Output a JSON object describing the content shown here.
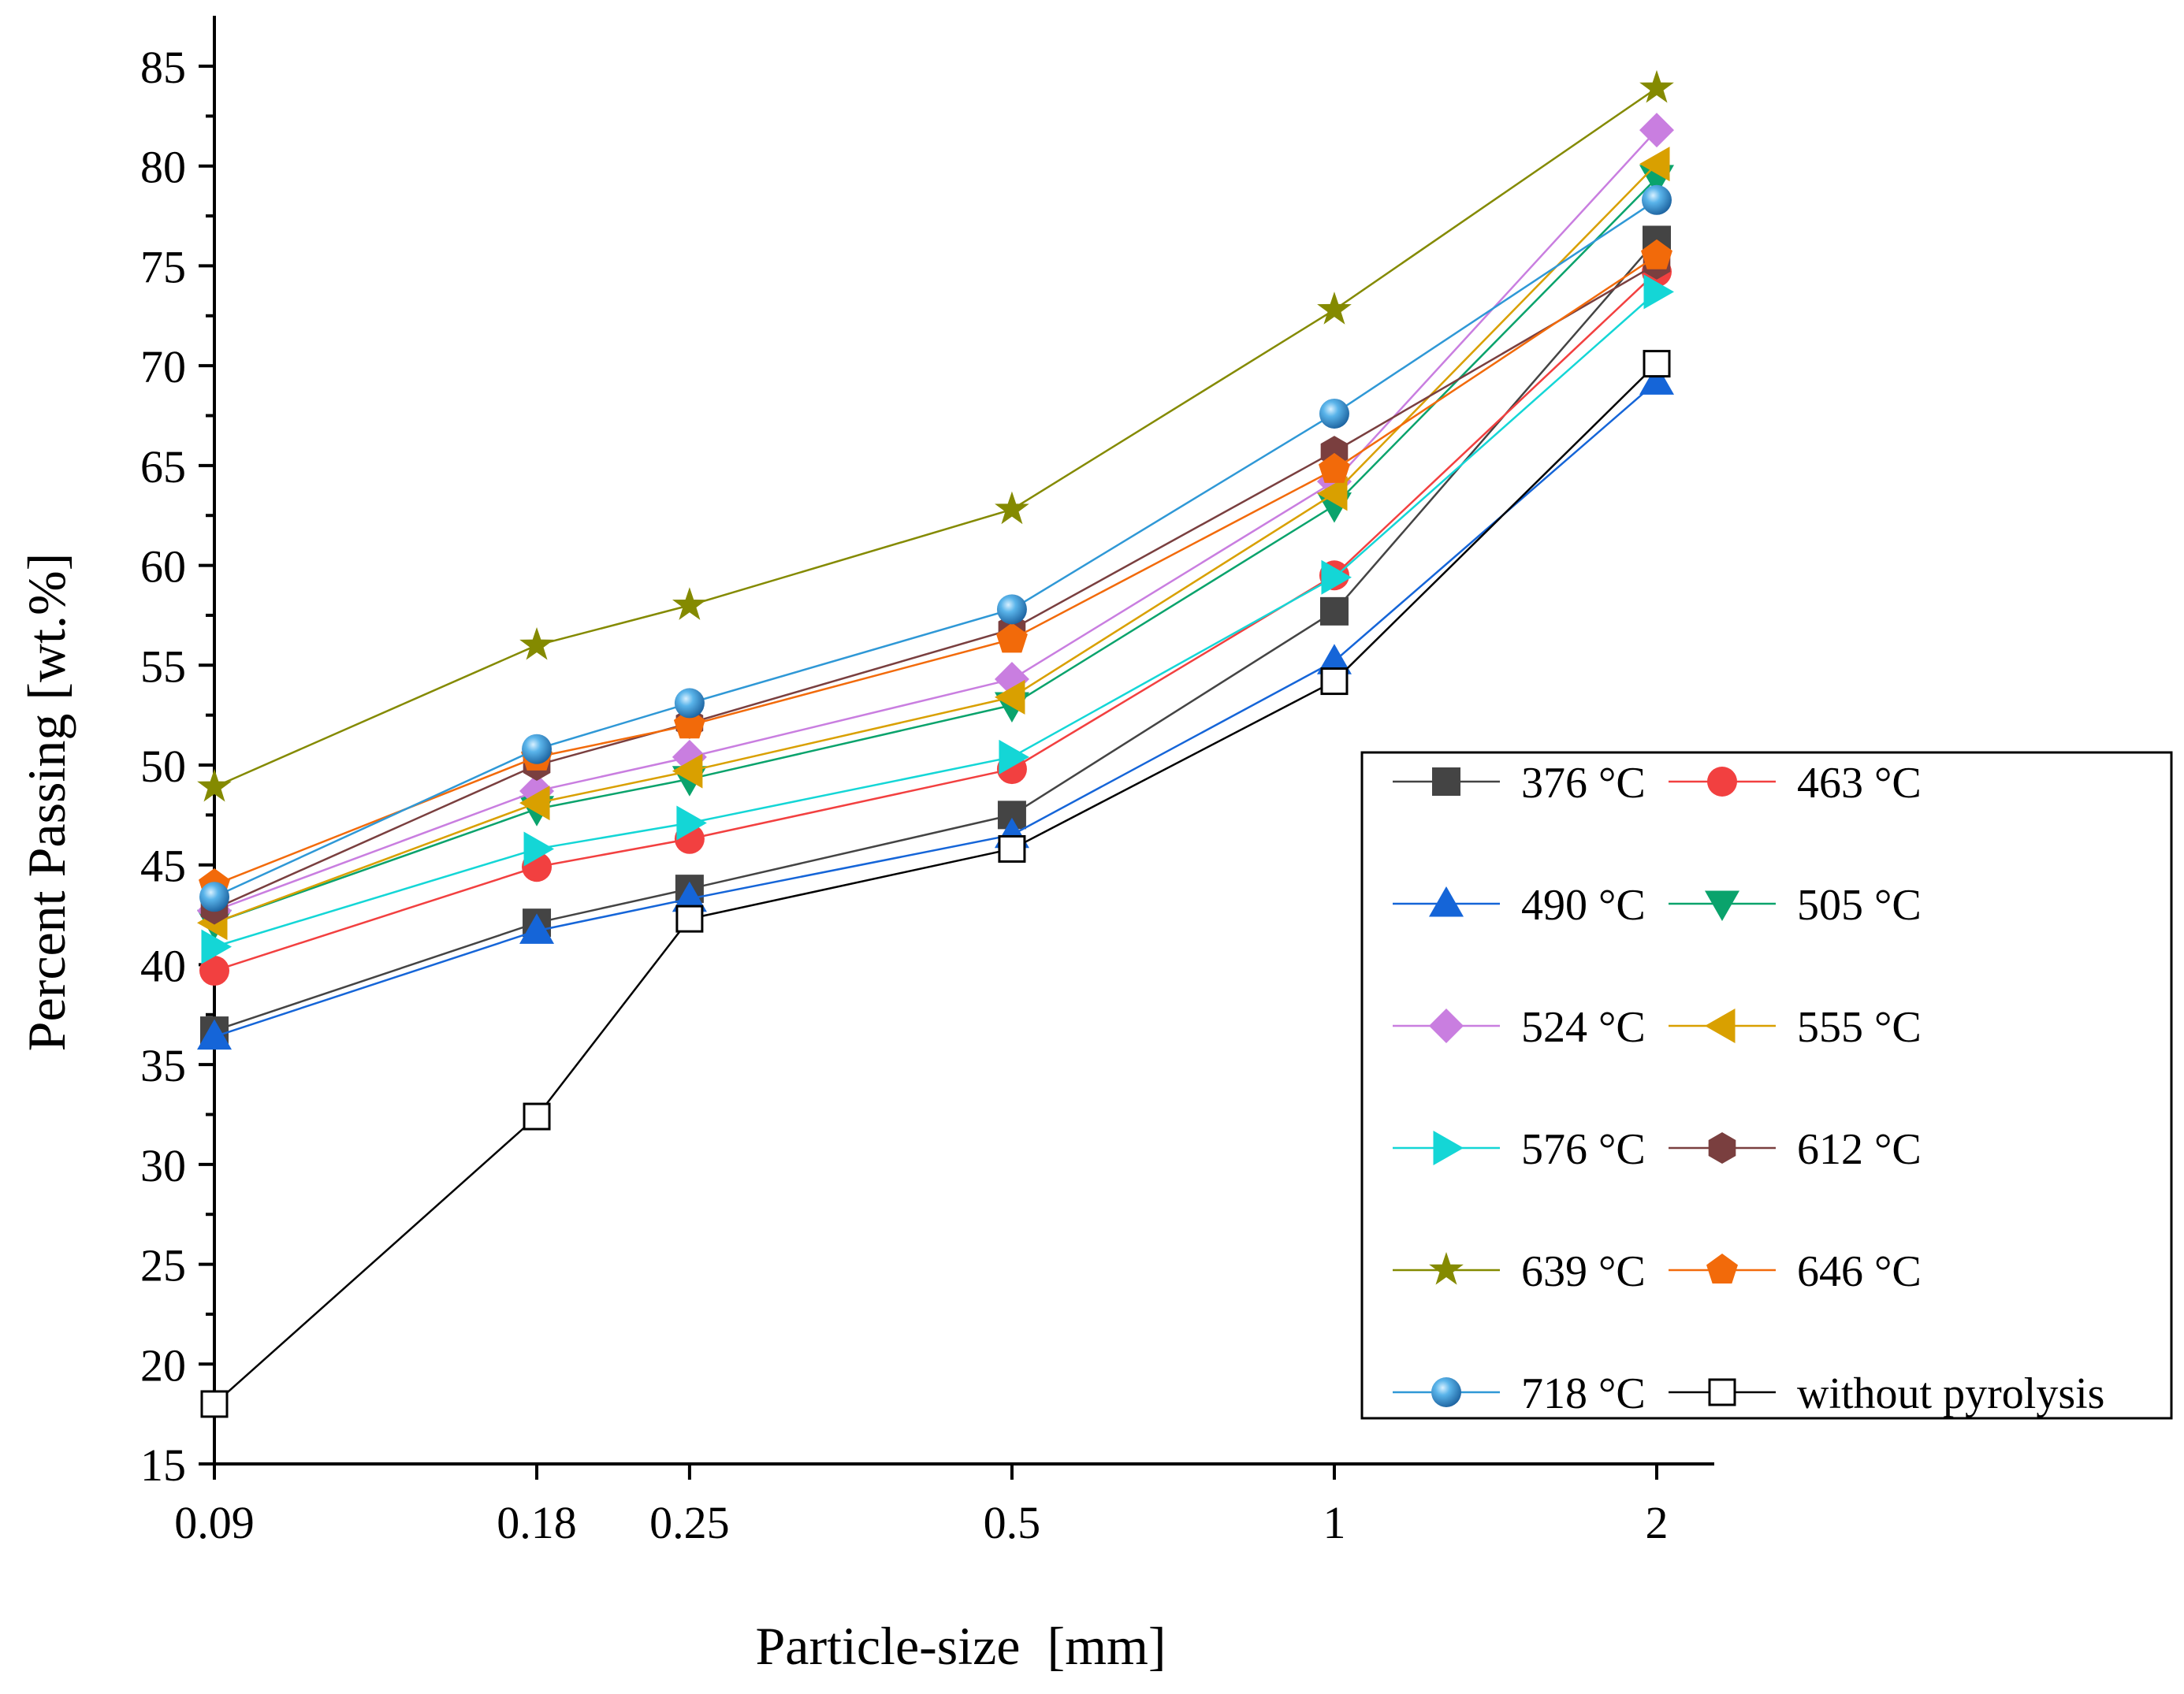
{
  "chart_data": {
    "type": "line",
    "title": "",
    "xlabel": "Particle-size  [mm]",
    "ylabel": "Percent Passing [wt.%]",
    "x_scale": "log",
    "x": [
      0.09,
      0.18,
      0.25,
      0.5,
      1,
      2
    ],
    "x_tick_labels": [
      "0.09",
      "0.18",
      "0.25",
      "0.5",
      "1",
      "2"
    ],
    "ylim": [
      15,
      87
    ],
    "y_ticks": [
      15,
      20,
      25,
      30,
      35,
      40,
      45,
      50,
      55,
      60,
      65,
      70,
      75,
      80,
      85
    ],
    "grid": false,
    "legend_position": "lower-right",
    "series": [
      {
        "name": "376 °C",
        "color": "#444444",
        "marker": "square",
        "values": [
          36.7,
          42.1,
          43.8,
          47.5,
          57.7,
          76.3
        ]
      },
      {
        "name": "463 °C",
        "color": "#f24040",
        "marker": "circle",
        "values": [
          39.7,
          44.9,
          46.3,
          49.8,
          59.5,
          74.7
        ]
      },
      {
        "name": "490 °C",
        "color": "#1565d8",
        "marker": "triangle-up",
        "values": [
          36.4,
          41.7,
          43.3,
          46.5,
          55.2,
          69.2
        ]
      },
      {
        "name": "505 °C",
        "color": "#0aa36c",
        "marker": "triangle-down",
        "values": [
          42.1,
          47.8,
          49.3,
          53.0,
          63.0,
          79.4
        ]
      },
      {
        "name": "524 °C",
        "color": "#c97ee0",
        "marker": "diamond",
        "values": [
          42.7,
          48.7,
          50.4,
          54.3,
          64.2,
          81.8
        ]
      },
      {
        "name": "555 °C",
        "color": "#d9a000",
        "marker": "triangle-left",
        "values": [
          42.1,
          48.1,
          49.7,
          53.4,
          63.6,
          80.1
        ]
      },
      {
        "name": "576 °C",
        "color": "#14d6d6",
        "marker": "triangle-right",
        "values": [
          40.9,
          45.8,
          47.1,
          50.4,
          59.4,
          73.7
        ]
      },
      {
        "name": "612 °C",
        "color": "#7a3f3f",
        "marker": "hexagon",
        "values": [
          42.8,
          50.0,
          52.1,
          56.8,
          65.7,
          75.1
        ]
      },
      {
        "name": "639 °C",
        "color": "#848a00",
        "marker": "star",
        "values": [
          48.9,
          56.0,
          58.0,
          62.8,
          72.8,
          83.9
        ]
      },
      {
        "name": "646 °C",
        "color": "#f26a0a",
        "marker": "pentagon",
        "values": [
          44.0,
          50.4,
          52.0,
          56.3,
          64.8,
          75.5
        ]
      },
      {
        "name": "718 °C",
        "color": "#2f98d6",
        "marker": "sphere",
        "values": [
          43.4,
          50.8,
          53.1,
          57.8,
          67.6,
          78.3
        ]
      },
      {
        "name": "without pyrolysis",
        "color": "#000000",
        "marker": "open-square",
        "values": [
          18.0,
          32.4,
          42.3,
          45.8,
          54.2,
          70.1
        ]
      }
    ]
  }
}
